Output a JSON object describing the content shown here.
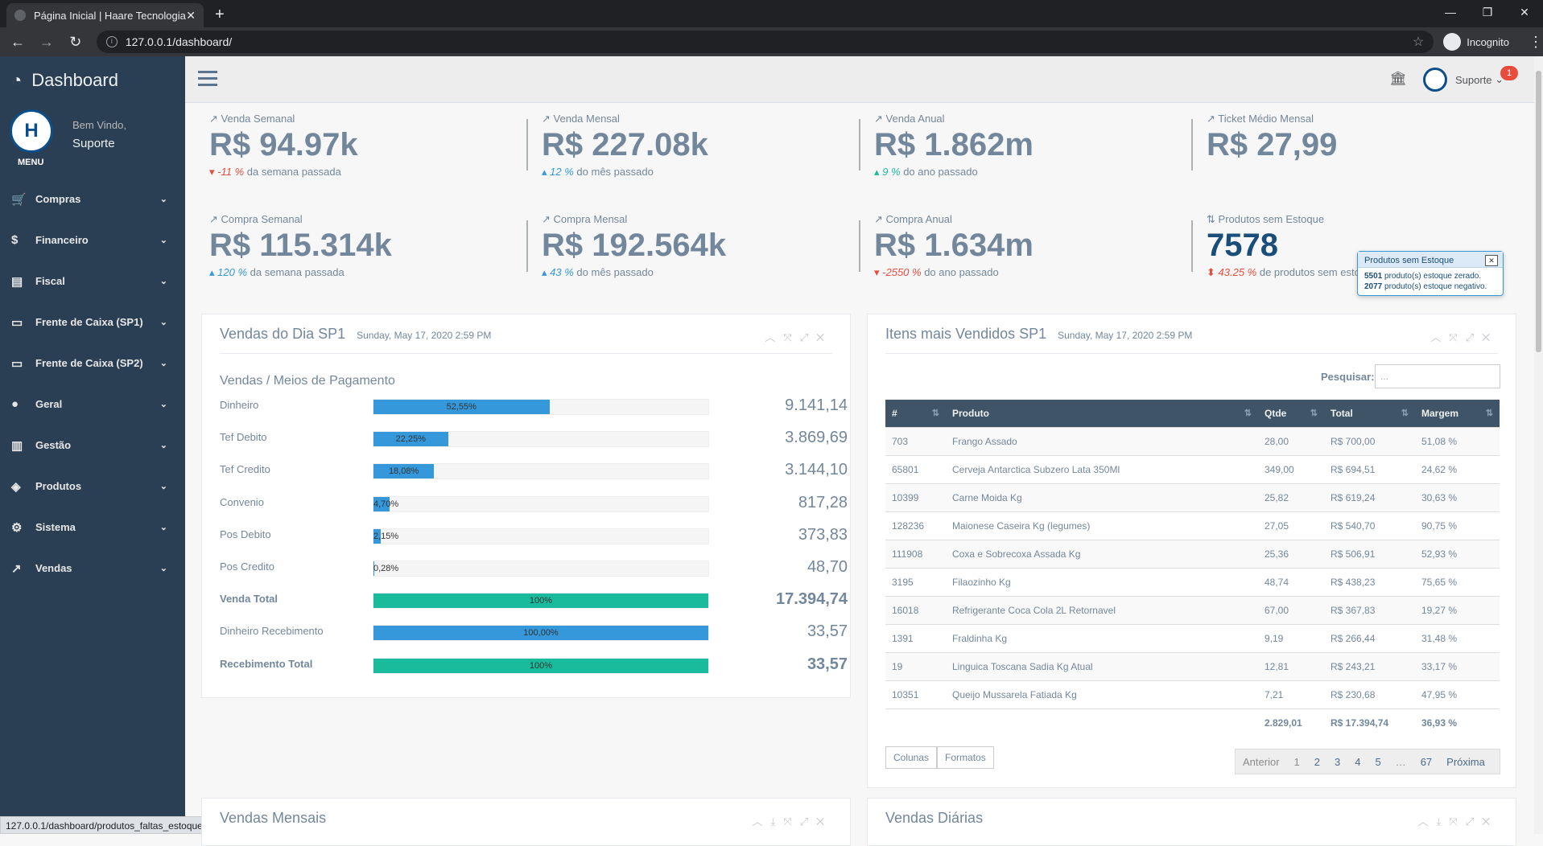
{
  "browser": {
    "tab_title": "Página Inicial | Haare Tecnologia",
    "url": "127.0.0.1/dashboard/",
    "profile": "Incognito",
    "status_url": "127.0.0.1/dashboard/produtos_faltas_estoque"
  },
  "sidebar": {
    "brand": "Dashboard",
    "welcome": "Bem Vindo,",
    "user": "Suporte",
    "menu_label": "MENU",
    "items": [
      {
        "label": "Compras",
        "icon": "cart-icon"
      },
      {
        "label": "Financeiro",
        "icon": "dollar-icon"
      },
      {
        "label": "Fiscal",
        "icon": "excel-file-icon"
      },
      {
        "label": "Frente de Caixa (SP1)",
        "icon": "desktop-icon"
      },
      {
        "label": "Frente de Caixa (SP2)",
        "icon": "desktop-icon"
      },
      {
        "label": "Geral",
        "icon": "globe-icon"
      },
      {
        "label": "Gestão",
        "icon": "bar-chart-icon"
      },
      {
        "label": "Produtos",
        "icon": "cube-icon"
      },
      {
        "label": "Sistema",
        "icon": "cogs-icon"
      },
      {
        "label": "Vendas",
        "icon": "line-chart-icon"
      }
    ]
  },
  "topnav": {
    "user": "Suporte",
    "badge": "1"
  },
  "stats": [
    {
      "caption": "Venda Semanal",
      "value": "R$ 94.97k",
      "delta": "-11 %",
      "delta_text": "da semana passada",
      "trend": "down"
    },
    {
      "caption": "Venda Mensal",
      "value": "R$ 227.08k",
      "delta": "12 %",
      "delta_text": "do mês passado",
      "trend": "up"
    },
    {
      "caption": "Venda Anual",
      "value": "R$ 1.862m",
      "delta": "9 %",
      "delta_text": "do ano passado",
      "trend": "up"
    },
    {
      "caption": "Ticket Médio Mensal",
      "value": "R$ 27,99",
      "delta": "",
      "delta_text": "",
      "trend": ""
    },
    {
      "caption": "Compra Semanal",
      "value": "R$ 115.314k",
      "delta": "120 %",
      "delta_text": "da semana passada",
      "trend": "up"
    },
    {
      "caption": "Compra Mensal",
      "value": "R$ 192.564k",
      "delta": "43 %",
      "delta_text": "do mês passado",
      "trend": "up"
    },
    {
      "caption": "Compra Anual",
      "value": "R$ 1.634m",
      "delta": "-2550 %",
      "delta_text": "do ano passado",
      "trend": "down"
    },
    {
      "caption": "Produtos sem Estoque",
      "value": "7578",
      "delta": "43.25 %",
      "delta_text": "de produtos sem esto",
      "trend": "both"
    }
  ],
  "popover": {
    "title": "Produtos sem Estoque",
    "close": "✕",
    "line1_count": "5501",
    "line1_text": "produto(s) estoque zerado.",
    "line2_count": "2077",
    "line2_text": "produto(s) estoque negativo."
  },
  "vendas_dia": {
    "title": "Vendas do Dia SP1",
    "date": "Sunday, May 17, 2020 2:59 PM",
    "subtitle": "Vendas / Meios de Pagamento",
    "rows": [
      {
        "label": "Dinheiro",
        "pct": 52.55,
        "pct_label": "52,55%",
        "value": "9.141,14",
        "bold": false,
        "green": false
      },
      {
        "label": "Tef Debito",
        "pct": 22.25,
        "pct_label": "22,25%",
        "value": "3.869,69",
        "bold": false,
        "green": false
      },
      {
        "label": "Tef Credito",
        "pct": 18.08,
        "pct_label": "18,08%",
        "value": "3.144,10",
        "bold": false,
        "green": false
      },
      {
        "label": "Convenio",
        "pct": 4.7,
        "pct_label": "4,70%",
        "value": "817,28",
        "bold": false,
        "green": false
      },
      {
        "label": "Pos Debito",
        "pct": 2.15,
        "pct_label": "2,15%",
        "value": "373,83",
        "bold": false,
        "green": false
      },
      {
        "label": "Pos Credito",
        "pct": 0.28,
        "pct_label": "0,28%",
        "value": "48,70",
        "bold": false,
        "green": false
      },
      {
        "label": "Venda Total",
        "pct": 100,
        "pct_label": "100%",
        "value": "17.394,74",
        "bold": true,
        "green": true
      },
      {
        "label": "Dinheiro Recebimento",
        "pct": 100,
        "pct_label": "100,00%",
        "value": "33,57",
        "bold": false,
        "green": false
      },
      {
        "label": "Recebimento Total",
        "pct": 100,
        "pct_label": "100%",
        "value": "33,57",
        "bold": true,
        "green": true
      }
    ]
  },
  "itens": {
    "title": "Itens mais Vendidos SP1",
    "date": "Sunday, May 17, 2020 2:59 PM",
    "search_label": "Pesquisar:",
    "search_placeholder": "...",
    "columns": [
      "#",
      "Produto",
      "Qtde",
      "Total",
      "Margem"
    ],
    "rows": [
      [
        "703",
        "Frango Assado",
        "28,00",
        "R$ 700,00",
        "51,08 %"
      ],
      [
        "65801",
        "Cerveja Antarctica Subzero Lata 350Ml",
        "349,00",
        "R$ 694,51",
        "24,62 %"
      ],
      [
        "10399",
        "Carne Moida Kg",
        "25,82",
        "R$ 619,24",
        "30,63 %"
      ],
      [
        "128236",
        "Maionese Caseira Kg (legumes)",
        "27,05",
        "R$ 540,70",
        "90,75 %"
      ],
      [
        "111908",
        "Coxa e Sobrecoxa Assada Kg",
        "25,36",
        "R$ 506,91",
        "52,93 %"
      ],
      [
        "3195",
        "Filaozinho Kg",
        "48,74",
        "R$ 438,23",
        "75,65 %"
      ],
      [
        "16018",
        "Refrigerante Coca Cola 2L Retornavel",
        "67,00",
        "R$ 367,83",
        "19,27 %"
      ],
      [
        "1391",
        "Fraldinha Kg",
        "9,19",
        "R$ 266,44",
        "31,48 %"
      ],
      [
        "19",
        "Linguica Toscana Sadia Kg Atual",
        "12,81",
        "R$ 243,21",
        "33,17 %"
      ],
      [
        "10351",
        "Queijo Mussarela Fatiada Kg",
        "7,21",
        "R$ 230,68",
        "47,95 %"
      ]
    ],
    "footer": {
      "qtde": "2.829,01",
      "total": "R$ 17.394,74",
      "margem": "36,93 %"
    },
    "buttons": [
      "Colunas",
      "Formatos"
    ],
    "pager": [
      "Anterior",
      "1",
      "2",
      "3",
      "4",
      "5",
      "…",
      "67",
      "Próxima"
    ]
  },
  "vendas_mensais": {
    "title": "Vendas Mensais"
  },
  "vendas_diarias": {
    "title": "Vendas Diárias"
  }
}
